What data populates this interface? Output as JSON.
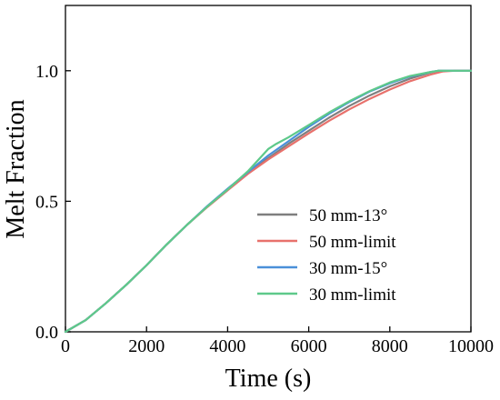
{
  "chart_data": {
    "type": "line",
    "xlabel": "Time (s)",
    "ylabel": "Melt Fraction",
    "xlim": [
      0,
      10000
    ],
    "ylim": [
      0,
      1.25
    ],
    "xticks": [
      0,
      2000,
      4000,
      6000,
      8000,
      10000
    ],
    "yticks": [
      0.0,
      0.5,
      1.0
    ],
    "xtick_labels": [
      "0",
      "2000",
      "4000",
      "6000",
      "8000",
      "10000"
    ],
    "ytick_labels": [
      "0.0",
      "0.5",
      "1.0"
    ],
    "grid": false,
    "legend_position": "center-right",
    "series": [
      {
        "name": "50 mm-13°",
        "color": "#7f7f7f",
        "x": [
          0,
          500,
          1000,
          1500,
          2000,
          2500,
          3000,
          3500,
          4000,
          4500,
          5000,
          5500,
          6000,
          6500,
          7000,
          7500,
          8000,
          8500,
          9000,
          9200,
          9500,
          10000
        ],
        "y": [
          0,
          0.045,
          0.11,
          0.18,
          0.255,
          0.335,
          0.41,
          0.48,
          0.545,
          0.61,
          0.665,
          0.72,
          0.77,
          0.82,
          0.865,
          0.905,
          0.94,
          0.97,
          0.993,
          1.0,
          1.0,
          1.0
        ]
      },
      {
        "name": "50 mm-limit",
        "color": "#e8716c",
        "x": [
          0,
          500,
          1000,
          1500,
          2000,
          2500,
          3000,
          3500,
          4000,
          4500,
          5000,
          5500,
          6000,
          6500,
          7000,
          7500,
          8000,
          8500,
          9000,
          9300,
          9600,
          10000
        ],
        "y": [
          0,
          0.045,
          0.11,
          0.18,
          0.255,
          0.335,
          0.41,
          0.478,
          0.542,
          0.605,
          0.66,
          0.71,
          0.76,
          0.808,
          0.852,
          0.892,
          0.928,
          0.96,
          0.985,
          0.997,
          1.0,
          1.0
        ]
      },
      {
        "name": "30 mm-15°",
        "color": "#4a90d9",
        "x": [
          0,
          500,
          1000,
          1500,
          2000,
          2500,
          3000,
          3500,
          4000,
          4500,
          5000,
          5500,
          6000,
          6500,
          7000,
          7500,
          8000,
          8500,
          9000,
          9200,
          9500,
          10000
        ],
        "y": [
          0,
          0.045,
          0.11,
          0.18,
          0.255,
          0.335,
          0.41,
          0.482,
          0.548,
          0.612,
          0.675,
          0.73,
          0.785,
          0.835,
          0.88,
          0.92,
          0.952,
          0.978,
          0.995,
          1.0,
          1.0,
          1.0
        ]
      },
      {
        "name": "30 mm-limit",
        "color": "#5ec98a",
        "x": [
          0,
          500,
          1000,
          1500,
          2000,
          2500,
          3000,
          3500,
          4000,
          4500,
          5000,
          5200,
          5500,
          6000,
          6500,
          7000,
          7500,
          8000,
          8500,
          9000,
          9200,
          9500,
          10000
        ],
        "y": [
          0,
          0.045,
          0.11,
          0.18,
          0.255,
          0.335,
          0.41,
          0.48,
          0.545,
          0.615,
          0.7,
          0.72,
          0.745,
          0.792,
          0.84,
          0.883,
          0.922,
          0.955,
          0.98,
          0.995,
          1.0,
          1.0,
          1.0
        ]
      }
    ]
  }
}
